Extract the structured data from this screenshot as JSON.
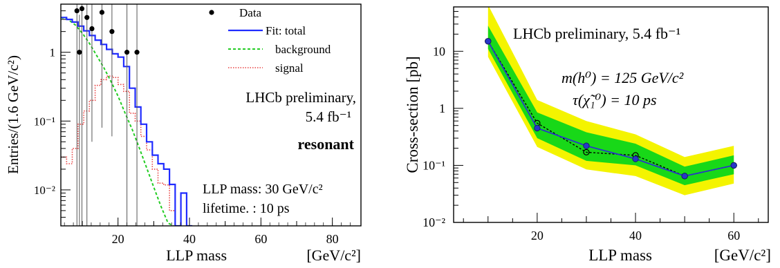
{
  "chart_data": [
    {
      "type": "line",
      "xlabel": "LLP mass",
      "xunit": "[GeV/c²]",
      "ylabel": "Entries/(1.6 GeV/c²)",
      "xlim": [
        4,
        88
      ],
      "ylim": [
        0.003,
        5
      ],
      "ylog": true,
      "xticks": [
        "20",
        "40",
        "60",
        "80"
      ],
      "yticks": [
        {
          "value": 1,
          "label": "1"
        },
        {
          "value": 0.1,
          "label": "10⁻¹"
        },
        {
          "value": 0.01,
          "label": "10⁻²"
        }
      ],
      "legend": {
        "placement": "top-right",
        "entries": [
          "Data",
          "Fit: total",
          "background",
          "signal"
        ]
      },
      "annotations": {
        "collab_line1": "LHCb preliminary,",
        "collab_line2": "5.4 fb⁻¹",
        "selection": "resonant",
        "mass_text": "LLP mass: 30 GeV/c²",
        "lifetime_text": "lifetime.   : 10 ps"
      },
      "colors": {
        "total": "#1f2bff",
        "background": "#22cc22",
        "signal": "#e84040",
        "data": "#000000",
        "annotation": "#e03030"
      },
      "series": [
        {
          "name": "Data",
          "style": "points",
          "points": [
            {
              "x": 8.5,
              "y": 4.0,
              "lo": 0.001,
              "hi": 10
            },
            {
              "x": 9.9,
              "y": 4.3,
              "lo": 0.001,
              "hi": 10
            },
            {
              "x": 11.3,
              "y": 3.2,
              "lo": 0.001,
              "hi": 10
            },
            {
              "x": 12.7,
              "y": 2.2,
              "lo": 0.05,
              "hi": 10
            },
            {
              "x": 15.5,
              "y": 3.8,
              "lo": 0.08,
              "hi": 10
            },
            {
              "x": 18.3,
              "y": 2.0,
              "lo": 0.06,
              "hi": 10
            },
            {
              "x": 22.5,
              "y": 1.0,
              "lo": 0.001,
              "hi": 6
            },
            {
              "x": 25.3,
              "y": 1.0,
              "lo": 0.001,
              "hi": 6
            },
            {
              "x": 9.2,
              "y": 1.0,
              "lo": 0.001,
              "hi": 3.5
            }
          ]
        },
        {
          "name": "Fit: total",
          "style": "step",
          "x": [
            4,
            5.6,
            7.2,
            8.8,
            10.4,
            12,
            13.6,
            15.2,
            16.8,
            18.4,
            20,
            21.6,
            23.2,
            24.8,
            26.4,
            28,
            29.6,
            31.2,
            32.8,
            34.4,
            36,
            37.6,
            39.2,
            40.8
          ],
          "y": [
            3.2,
            3.0,
            2.75,
            2.4,
            2.05,
            1.75,
            1.5,
            1.3,
            1.1,
            0.95,
            0.85,
            0.62,
            0.3,
            0.16,
            0.09,
            0.05,
            0.032,
            0.024,
            0.02,
            0.012,
            0.003,
            0.009,
            0.003,
            0.003
          ]
        },
        {
          "name": "background",
          "style": "dashed",
          "x": [
            4,
            6,
            8,
            10,
            12,
            14,
            16,
            18,
            20,
            22,
            24,
            26,
            28,
            30,
            32,
            34,
            35.5
          ],
          "y": [
            3.2,
            3.0,
            2.5,
            1.9,
            1.35,
            0.9,
            0.6,
            0.38,
            0.23,
            0.13,
            0.075,
            0.04,
            0.021,
            0.011,
            0.0058,
            0.0033,
            0.003
          ]
        },
        {
          "name": "signal",
          "style": "dotted-step",
          "x": [
            4,
            5.6,
            7.2,
            8.8,
            10.4,
            12,
            13.6,
            15.2,
            16.8,
            18.4,
            20,
            21.6,
            23.2,
            24.8,
            26.4,
            28,
            29.6,
            31.2,
            32.8,
            34.4,
            36
          ],
          "y": [
            0.03,
            0.024,
            0.04,
            0.09,
            0.14,
            0.2,
            0.33,
            0.4,
            0.45,
            0.43,
            0.34,
            0.27,
            0.13,
            0.1,
            0.06,
            0.038,
            0.02,
            0.0125,
            0.0118,
            0.005,
            0.003
          ]
        }
      ]
    },
    {
      "type": "line",
      "xlabel": "LLP mass",
      "xunit": "[GeV/c²]",
      "ylabel": "Cross-section [pb]",
      "xlim": [
        3,
        67
      ],
      "ylim": [
        0.01,
        60
      ],
      "ylog": true,
      "xticks": [
        "20",
        "40",
        "60"
      ],
      "yticks": [
        {
          "value": 10,
          "label": "10"
        },
        {
          "value": 1,
          "label": "1"
        },
        {
          "value": 0.1,
          "label": "10⁻¹"
        },
        {
          "value": 0.01,
          "label": "10⁻²"
        }
      ],
      "annotations": {
        "collab": "LHCb preliminary, 5.4 fb⁻¹",
        "mass": "m(h⁰) = 125 GeV/c²",
        "lifetime": "τ(χ̃₁⁰) = 10 ps"
      },
      "colors": {
        "observed": "#2838c8",
        "band2": "#f4f400",
        "band1": "#18d818",
        "expected": "#000000"
      },
      "x": [
        10,
        20,
        30,
        40,
        50,
        60
      ],
      "observed": [
        15,
        0.45,
        0.22,
        0.13,
        0.065,
        0.1
      ],
      "expected": [
        15,
        0.55,
        0.17,
        0.15,
        0.065,
        0.1
      ],
      "band_1sigma": {
        "low": [
          11,
          0.3,
          0.12,
          0.1,
          0.045,
          0.07
        ],
        "high": [
          28,
          0.85,
          0.38,
          0.24,
          0.095,
          0.15
        ]
      },
      "band_2sigma": {
        "low": [
          8,
          0.21,
          0.085,
          0.065,
          0.03,
          0.048
        ],
        "high": [
          65,
          1.4,
          0.6,
          0.35,
          0.14,
          0.22
        ]
      }
    }
  ]
}
